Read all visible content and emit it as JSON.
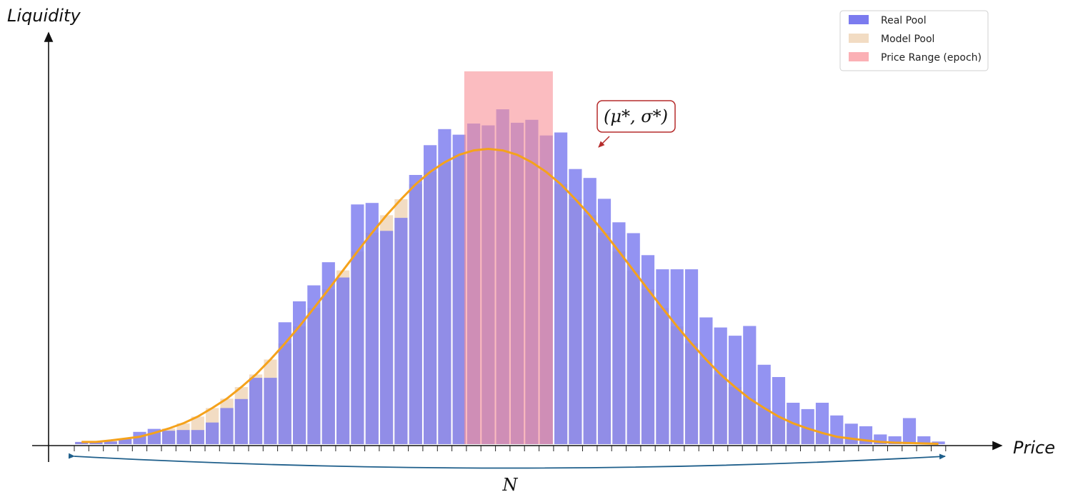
{
  "chart_data": {
    "type": "bar",
    "xlabel": "Price",
    "ylabel": "Liquidity",
    "ylim": [
      0,
      1.13
    ],
    "bins": 60,
    "series": [
      {
        "name": "Real Pool",
        "color": "#7b7bef",
        "values": [
          0.006,
          0.006,
          0.007,
          0.014,
          0.033,
          0.041,
          0.036,
          0.038,
          0.038,
          0.058,
          0.097,
          0.121,
          0.178,
          0.178,
          0.327,
          0.383,
          0.426,
          0.488,
          0.447,
          0.643,
          0.647,
          0.572,
          0.607,
          0.722,
          0.802,
          0.845,
          0.83,
          0.86,
          0.855,
          0.898,
          0.862,
          0.87,
          0.828,
          0.836,
          0.738,
          0.714,
          0.658,
          0.595,
          0.566,
          0.507,
          0.469,
          0.469,
          0.469,
          0.34,
          0.313,
          0.291,
          0.317,
          0.213,
          0.18,
          0.111,
          0.094,
          0.111,
          0.077,
          0.055,
          0.048,
          0.026,
          0.021,
          0.07,
          0.021,
          0.007
        ]
      },
      {
        "name": "Model Pool",
        "color": "#f2dcc3",
        "values": [
          0.006,
          0.006,
          0.01,
          0.015,
          0.02,
          0.03,
          0.042,
          0.056,
          0.074,
          0.097,
          0.122,
          0.153,
          0.187,
          0.227,
          0.27,
          0.316,
          0.365,
          0.415,
          0.466,
          0.517,
          0.567,
          0.614,
          0.657,
          0.697,
          0.73,
          0.756,
          0.776,
          0.788,
          0.792,
          0.788,
          0.776,
          0.756,
          0.73,
          0.697,
          0.657,
          0.614,
          0.567,
          0.517,
          0.466,
          0.415,
          0.365,
          0.316,
          0.27,
          0.227,
          0.187,
          0.153,
          0.122,
          0.097,
          0.074,
          0.056,
          0.042,
          0.03,
          0.02,
          0.015,
          0.01,
          0.006,
          0.004,
          0.003,
          0.002,
          0.001
        ]
      }
    ],
    "fit_curve": {
      "color": "#f5a21b"
    },
    "price_range_epoch": {
      "name": "Price Range (epoch)",
      "color": "#f98f96",
      "from_bin": 27,
      "to_bin": 32,
      "top": 1.0
    },
    "annotations": {
      "parameter_label": "(μ*, σ*)",
      "range_label": "N"
    },
    "legend": {
      "position": "top-right",
      "entries": [
        "Real Pool",
        "Model Pool",
        "Price Range (epoch)"
      ]
    },
    "grid": false
  }
}
